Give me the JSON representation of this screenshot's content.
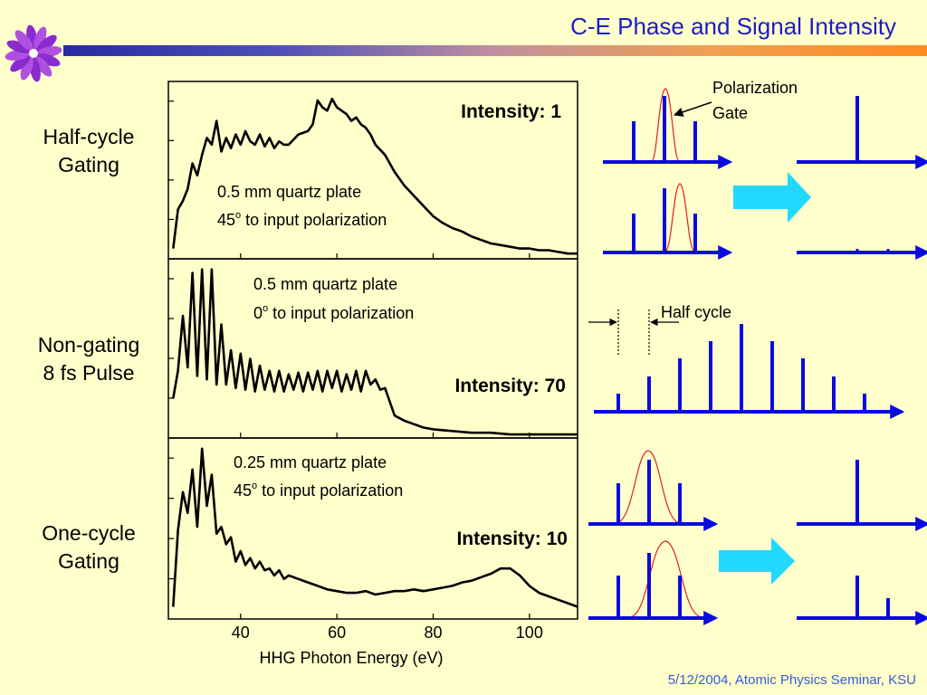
{
  "slide": {
    "title": "C-E Phase and Signal Intensity",
    "footer": "5/12/2004, Atomic Physics Seminar, KSU"
  },
  "rows": [
    {
      "label_line1": "Half-cycle",
      "label_line2": "Gating",
      "plate_line1": "0.5 mm quartz plate",
      "angle": "45",
      "degree_mark": "o",
      "angle_suffix": " to input polarization",
      "intensity": "Intensity: 1"
    },
    {
      "label_line1": "Non-gating",
      "label_line2": "8 fs Pulse",
      "plate_line1": "0.5 mm quartz plate",
      "angle": "0",
      "degree_mark": "o",
      "angle_suffix": " to input polarization",
      "intensity": "Intensity: 70"
    },
    {
      "label_line1": "One-cycle",
      "label_line2": "Gating",
      "plate_line1": "0.25 mm quartz plate",
      "angle": "45",
      "degree_mark": "o",
      "angle_suffix": " to input polarization",
      "intensity": "Intensity: 10"
    }
  ],
  "chart_data": {
    "type": "line",
    "xlabel": "HHG Photon Energy (eV)",
    "xlim": [
      25,
      110
    ],
    "xticks": [
      40,
      60,
      80,
      100
    ],
    "panels": [
      {
        "name": "Half-cycle Gating",
        "ylim": [
          0,
          1
        ],
        "y_tick_count": 4,
        "x": [
          26,
          27,
          28,
          29,
          30,
          31,
          32,
          33,
          34,
          35,
          36,
          37,
          38,
          39,
          40,
          41,
          42,
          43,
          44,
          45,
          46,
          47,
          48,
          49,
          50,
          52,
          54,
          55,
          56,
          57,
          58,
          59,
          60,
          61,
          62,
          63,
          64,
          65,
          66,
          67,
          68,
          70,
          72,
          74,
          76,
          78,
          80,
          82,
          84,
          86,
          88,
          90,
          92,
          94,
          96,
          98,
          100,
          102,
          104,
          106,
          108,
          110
        ],
        "y": [
          0.05,
          0.28,
          0.33,
          0.4,
          0.55,
          0.48,
          0.6,
          0.7,
          0.66,
          0.8,
          0.62,
          0.7,
          0.64,
          0.72,
          0.66,
          0.74,
          0.68,
          0.66,
          0.72,
          0.65,
          0.7,
          0.64,
          0.68,
          0.66,
          0.66,
          0.72,
          0.74,
          0.78,
          0.92,
          0.88,
          0.86,
          0.93,
          0.88,
          0.86,
          0.84,
          0.8,
          0.82,
          0.78,
          0.76,
          0.72,
          0.66,
          0.6,
          0.5,
          0.42,
          0.36,
          0.3,
          0.24,
          0.2,
          0.17,
          0.15,
          0.12,
          0.1,
          0.08,
          0.07,
          0.06,
          0.05,
          0.05,
          0.04,
          0.04,
          0.03,
          0.02,
          0.02
        ]
      },
      {
        "name": "Non-gating 8 fs Pulse",
        "ylim": [
          0,
          1
        ],
        "y_tick_count": 4,
        "x": [
          26,
          27,
          28,
          29,
          30,
          31,
          32,
          33,
          34,
          35,
          36,
          37,
          38,
          39,
          40,
          41,
          42,
          43,
          44,
          45,
          46,
          47,
          48,
          49,
          50,
          51,
          52,
          53,
          54,
          55,
          56,
          57,
          58,
          59,
          60,
          61,
          62,
          63,
          64,
          65,
          66,
          67,
          68,
          69,
          70,
          71,
          72,
          74,
          76,
          78,
          80,
          84,
          88,
          92,
          96,
          100,
          104,
          110
        ],
        "y": [
          0.22,
          0.38,
          0.7,
          0.4,
          0.95,
          0.35,
          0.97,
          0.33,
          0.97,
          0.3,
          0.65,
          0.3,
          0.5,
          0.28,
          0.48,
          0.27,
          0.45,
          0.26,
          0.41,
          0.27,
          0.38,
          0.26,
          0.38,
          0.26,
          0.36,
          0.27,
          0.37,
          0.26,
          0.37,
          0.27,
          0.38,
          0.26,
          0.38,
          0.28,
          0.38,
          0.26,
          0.36,
          0.27,
          0.38,
          0.26,
          0.38,
          0.3,
          0.33,
          0.27,
          0.28,
          0.2,
          0.12,
          0.09,
          0.07,
          0.05,
          0.04,
          0.03,
          0.02,
          0.02,
          0.01,
          0.01,
          0.01,
          0.01
        ]
      },
      {
        "name": "One-cycle Gating",
        "ylim": [
          0,
          1
        ],
        "y_tick_count": 4,
        "x": [
          26,
          27,
          28,
          29,
          30,
          31,
          32,
          33,
          34,
          35,
          36,
          37,
          38,
          39,
          40,
          41,
          42,
          43,
          44,
          45,
          46,
          47,
          48,
          49,
          50,
          52,
          54,
          56,
          58,
          60,
          62,
          64,
          66,
          68,
          70,
          72,
          74,
          76,
          78,
          80,
          82,
          84,
          86,
          88,
          90,
          92,
          94,
          96,
          98,
          100,
          102,
          104,
          106,
          108,
          110
        ],
        "y": [
          0.06,
          0.5,
          0.72,
          0.6,
          0.85,
          0.52,
          0.97,
          0.64,
          0.82,
          0.48,
          0.52,
          0.42,
          0.46,
          0.32,
          0.38,
          0.3,
          0.34,
          0.28,
          0.32,
          0.27,
          0.28,
          0.24,
          0.27,
          0.22,
          0.24,
          0.22,
          0.2,
          0.18,
          0.16,
          0.15,
          0.14,
          0.14,
          0.15,
          0.13,
          0.14,
          0.15,
          0.15,
          0.16,
          0.15,
          0.16,
          0.17,
          0.18,
          0.2,
          0.21,
          0.23,
          0.25,
          0.28,
          0.28,
          0.24,
          0.18,
          0.14,
          0.12,
          0.1,
          0.08,
          0.06
        ]
      }
    ]
  },
  "diagram": {
    "polarization_gate_line1": "Polarization",
    "polarization_gate_line2": "Gate",
    "half_cycle": "Half cycle"
  },
  "colors": {
    "title": "#1c1cc8",
    "footer": "#3a5ad8",
    "pulse_blue": "#0a0ae0",
    "gate_red": "#dd2222",
    "arrow_cyan": "#22d8ff",
    "background": "#FFFFCC"
  },
  "icons": {
    "logo": "flower-logo-icon"
  }
}
